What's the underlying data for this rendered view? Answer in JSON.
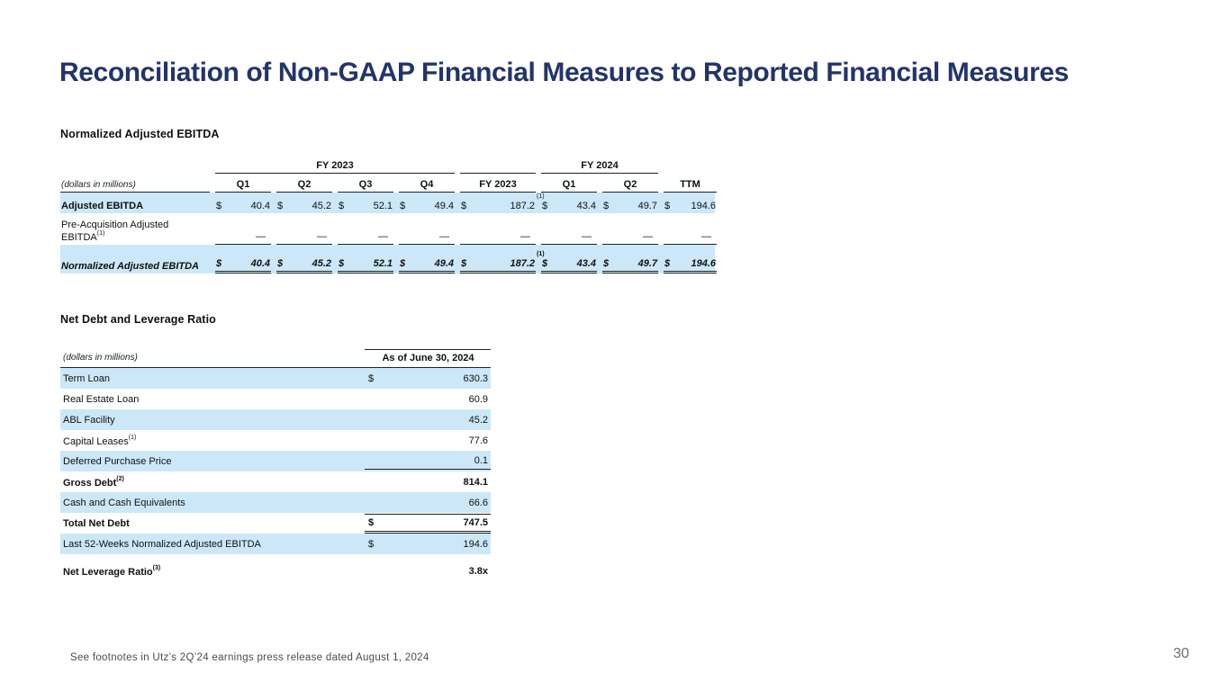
{
  "slide": {
    "title": "Reconciliation of Non-GAAP Financial Measures to Reported Financial Measures",
    "footer": "See footnotes in Utz’s 2Q’24 earnings press release dated August 1, 2024",
    "page_number": "30"
  },
  "colors": {
    "title_navy": "#23346c",
    "row_highlight_blue": "#cce8f8",
    "rule_color": "#222222"
  },
  "ebitda": {
    "title": "Normalized Adjusted EBITDA",
    "units_label": "(dollars in millions)",
    "group_fy2023": "FY 2023",
    "group_fy2024": "FY 2024",
    "columns": [
      "Q1",
      "Q2",
      "Q3",
      "Q4",
      "FY 2023",
      "Q1",
      "Q2",
      "TTM"
    ],
    "fy23_footnote": "(1)",
    "rows": [
      {
        "label": "Adjusted EBITDA",
        "dollar": "$",
        "values": [
          "40.4",
          "45.2",
          "52.1",
          "49.4",
          "187.2",
          "43.4",
          "49.7",
          "194.6"
        ]
      },
      {
        "label": "Pre-Acquisition Adjusted EBITDA",
        "label_sup": "(1)",
        "values": [
          "—",
          "—",
          "—",
          "—",
          "—",
          "—",
          "—",
          "—"
        ]
      },
      {
        "label": "Normalized Adjusted EBITDA",
        "dollar": "$",
        "values": [
          "40.4",
          "45.2",
          "52.1",
          "49.4",
          "187.2",
          "43.4",
          "49.7",
          "194.6"
        ]
      }
    ]
  },
  "netdebt": {
    "title": "Net Debt and Leverage Ratio",
    "units_label": "(dollars in millions)",
    "column_header": "As of June 30, 2024",
    "rows": [
      {
        "label": "Term Loan",
        "dollar": "$",
        "value": "630.3"
      },
      {
        "label": "Real Estate Loan",
        "value": "60.9"
      },
      {
        "label": "ABL Facility",
        "value": "45.2"
      },
      {
        "label": "Capital Leases",
        "sup": "(1)",
        "value": "77.6"
      },
      {
        "label": "Deferred Purchase Price",
        "value": "0.1"
      },
      {
        "label": "Gross Debt",
        "sup": "(2)",
        "value": "814.1"
      },
      {
        "label": "Cash and Cash Equivalents",
        "value": "66.6"
      },
      {
        "label": "Total Net Debt",
        "dollar": "$",
        "value": "747.5"
      },
      {
        "label": "Last 52-Weeks Normalized Adjusted EBITDA",
        "dollar": "$",
        "value": "194.6"
      },
      {
        "label": "Net Leverage Ratio",
        "sup": "(3)",
        "value": "3.8x"
      }
    ]
  }
}
